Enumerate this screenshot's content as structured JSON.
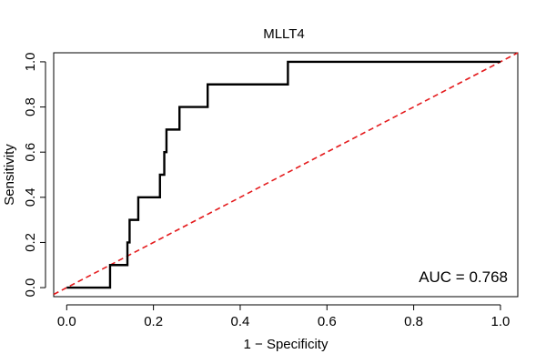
{
  "chart_data": {
    "type": "line",
    "title": "MLLT4",
    "xlabel": "1 − Specificity",
    "ylabel": "Sensitivity",
    "xlim": [
      -0.03,
      1.04
    ],
    "ylim": [
      -0.04,
      1.04
    ],
    "x_ticks": [
      0.0,
      0.2,
      0.4,
      0.6,
      0.8,
      1.0
    ],
    "y_ticks": [
      0.0,
      0.2,
      0.4,
      0.6,
      0.8,
      1.0
    ],
    "x_tick_labels": [
      "0.0",
      "0.2",
      "0.4",
      "0.6",
      "0.8",
      "1.0"
    ],
    "y_tick_labels": [
      "0.0",
      "0.2",
      "0.4",
      "0.6",
      "0.8",
      "1.0"
    ],
    "annotation": "AUC = 0.768",
    "grid": false,
    "series": [
      {
        "kind": "roc-curve",
        "color": "#000000",
        "x": [
          0.0,
          0.1,
          0.1,
          0.14,
          0.14,
          0.145,
          0.145,
          0.165,
          0.165,
          0.215,
          0.215,
          0.225,
          0.225,
          0.23,
          0.23,
          0.26,
          0.26,
          0.325,
          0.325,
          0.51,
          0.51,
          1.0
        ],
        "y": [
          0.0,
          0.0,
          0.1,
          0.1,
          0.2,
          0.2,
          0.3,
          0.3,
          0.4,
          0.4,
          0.5,
          0.5,
          0.6,
          0.6,
          0.7,
          0.7,
          0.8,
          0.8,
          0.9,
          0.9,
          1.0,
          1.0
        ]
      },
      {
        "kind": "reference-diagonal",
        "color": "#e41a1c",
        "x": [
          -0.03,
          1.04
        ],
        "y": [
          -0.03,
          1.04
        ]
      }
    ]
  }
}
